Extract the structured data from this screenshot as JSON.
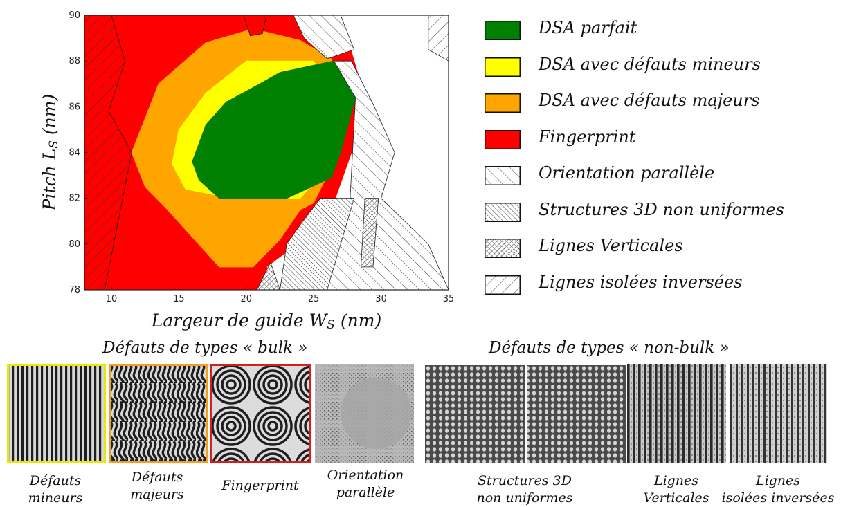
{
  "chart_data": {
    "type": "area",
    "title": "",
    "xlabel": "Largeur de guide W",
    "xlabel_sub": "S",
    "xlabel_unit": "(nm)",
    "ylabel": "Pitch L",
    "ylabel_sub": "S",
    "ylabel_unit": "(nm)",
    "xlim": [
      8,
      35
    ],
    "ylim": [
      78,
      90
    ],
    "xticks": [
      "10",
      "15",
      "20",
      "25",
      "30",
      "35"
    ],
    "yticks": [
      "78",
      "80",
      "82",
      "84",
      "86",
      "88",
      "90"
    ],
    "grid": false,
    "legend_position": "right",
    "series": [
      {
        "name": "Fingerprint",
        "color": "#ff0000",
        "points": [
          [
            8,
            78
          ],
          [
            22.5,
            78
          ],
          [
            21.5,
            79
          ],
          [
            26,
            81
          ],
          [
            29,
            86
          ],
          [
            27,
            90
          ],
          [
            8,
            90
          ]
        ]
      },
      {
        "name": "DSA avec défauts majeurs",
        "color": "#ffa500",
        "points": [
          [
            11.5,
            84
          ],
          [
            13.5,
            87
          ],
          [
            17,
            88.8
          ],
          [
            20.5,
            89.4
          ],
          [
            24,
            88.9
          ],
          [
            26.3,
            88.1
          ],
          [
            27,
            86
          ],
          [
            26,
            83
          ],
          [
            25,
            81.8
          ],
          [
            24,
            81.5
          ],
          [
            22.5,
            80.2
          ],
          [
            20.5,
            79
          ],
          [
            18,
            79
          ],
          [
            16,
            80.3
          ],
          [
            14,
            81.6
          ],
          [
            12.5,
            82.5
          ]
        ]
      },
      {
        "name": "DSA avec défauts mineurs",
        "color": "#ffff00",
        "points": [
          [
            14.5,
            83.5
          ],
          [
            15,
            85
          ],
          [
            17,
            86.6
          ],
          [
            20,
            88
          ],
          [
            25,
            88
          ],
          [
            26.7,
            86.5
          ],
          [
            25.5,
            83
          ],
          [
            24,
            82
          ],
          [
            19,
            82
          ],
          [
            15.5,
            82.4
          ]
        ]
      },
      {
        "name": "DSA parfait",
        "color": "#008000",
        "points": [
          [
            16,
            83.6
          ],
          [
            17,
            85.2
          ],
          [
            18.5,
            86.2
          ],
          [
            21,
            87
          ],
          [
            22.5,
            87.5
          ],
          [
            26.5,
            88
          ],
          [
            28.1,
            86.4
          ],
          [
            27,
            84
          ],
          [
            26.3,
            82.9
          ],
          [
            23,
            82
          ],
          [
            18,
            82
          ],
          [
            16.5,
            82.8
          ]
        ]
      }
    ],
    "overlays": [
      {
        "name": "Orientation parallèle",
        "pattern": "hatch-parallel",
        "points": [
          [
            26.5,
            88
          ],
          [
            27.8,
            88
          ],
          [
            29.5,
            86
          ],
          [
            31,
            84
          ],
          [
            30,
            82
          ],
          [
            33.5,
            80
          ],
          [
            35,
            78
          ],
          [
            26,
            78
          ],
          [
            26.3,
            80.5
          ],
          [
            27.7,
            82
          ],
          [
            28.1,
            86.4
          ]
        ]
      },
      {
        "name": "Structures 3D non uniformes",
        "pattern": "hatch-3d",
        "points": [
          [
            22.5,
            78
          ],
          [
            26,
            78
          ],
          [
            28,
            82
          ],
          [
            25.5,
            82
          ],
          [
            24.2,
            81
          ],
          [
            23,
            80
          ]
        ]
      },
      {
        "name": "Lignes Verticales",
        "pattern": "hatch-vertical",
        "points": [
          [
            28.8,
            82
          ],
          [
            29.8,
            82
          ],
          [
            29.4,
            79
          ],
          [
            28.5,
            79
          ]
        ]
      },
      {
        "name": "Lignes Verticales",
        "pattern": "hatch-vertical",
        "points": [
          [
            20.8,
            78
          ],
          [
            22.5,
            78
          ],
          [
            21.8,
            79.2
          ]
        ]
      },
      {
        "name": "Lignes isolées inversées",
        "pattern": "hatch-reversed",
        "points": [
          [
            8,
            78
          ],
          [
            9.5,
            78
          ],
          [
            10.5,
            81
          ],
          [
            11.5,
            84
          ],
          [
            9.8,
            85.8
          ],
          [
            11,
            88
          ],
          [
            10,
            90
          ],
          [
            8,
            90
          ]
        ]
      },
      {
        "name": "Lignes isolées inversées",
        "pattern": "hatch-reversed",
        "points": [
          [
            33.5,
            90
          ],
          [
            35,
            90
          ],
          [
            35,
            88
          ],
          [
            33.5,
            88.5
          ]
        ]
      },
      {
        "name": "Orientation parallèle",
        "pattern": "hatch-parallel",
        "points": [
          [
            23.5,
            90
          ],
          [
            27,
            90
          ],
          [
            28,
            88.5
          ],
          [
            26,
            88.1
          ],
          [
            24.3,
            89
          ]
        ]
      },
      {
        "name": "Fingerprint",
        "pattern": "solid-red",
        "points": [
          [
            19.8,
            90
          ],
          [
            21.5,
            90
          ],
          [
            21.2,
            89.2
          ],
          [
            20.3,
            89.1
          ]
        ]
      }
    ]
  },
  "legend": [
    {
      "label": "DSA parfait",
      "style": "fill",
      "color": "#008000"
    },
    {
      "label": "DSA avec défauts mineurs",
      "style": "fill",
      "color": "#ffff00"
    },
    {
      "label": "DSA avec défauts majeurs",
      "style": "fill",
      "color": "#ffa500"
    },
    {
      "label": "Fingerprint",
      "style": "fill",
      "color": "#ff0000"
    },
    {
      "label": "Orientation parallèle",
      "style": "hatch-parallel",
      "color": "#ffffff"
    },
    {
      "label": "Structures 3D non uniformes",
      "style": "hatch-3d",
      "color": "#ffffff"
    },
    {
      "label": "Lignes Verticales",
      "style": "hatch-vertical",
      "color": "#ffffff"
    },
    {
      "label": "Lignes isolées inversées",
      "style": "hatch-reversed",
      "color": "#ffffff"
    }
  ],
  "samples": {
    "bulk_title": "Défauts de types « bulk »",
    "nonbulk_title": "Défauts de types « non-bulk »",
    "bulk": [
      {
        "caption_line1": "Défauts",
        "caption_line2": "mineurs",
        "border_color": "#e8e800",
        "texture": "lines"
      },
      {
        "caption_line1": "Défauts",
        "caption_line2": "majeurs",
        "border_color": "#f0a020",
        "texture": "wavy"
      },
      {
        "caption_line1": "Fingerprint",
        "caption_line2": "",
        "border_color": "#d22020",
        "texture": "fingerprint"
      },
      {
        "caption_line1": "Orientation",
        "caption_line2": "parallèle",
        "border_color": "",
        "texture": "parallel"
      }
    ],
    "nonbulk": [
      {
        "caption_line1": "Structures 3D",
        "caption_line2": "non uniformes",
        "texture": "dots"
      },
      {
        "caption_line1": "Lignes",
        "caption_line2": "Verticales",
        "texture": "vertical"
      },
      {
        "caption_line1": "Lignes",
        "caption_line2": "isolées inversées",
        "texture": "reversed"
      }
    ]
  }
}
